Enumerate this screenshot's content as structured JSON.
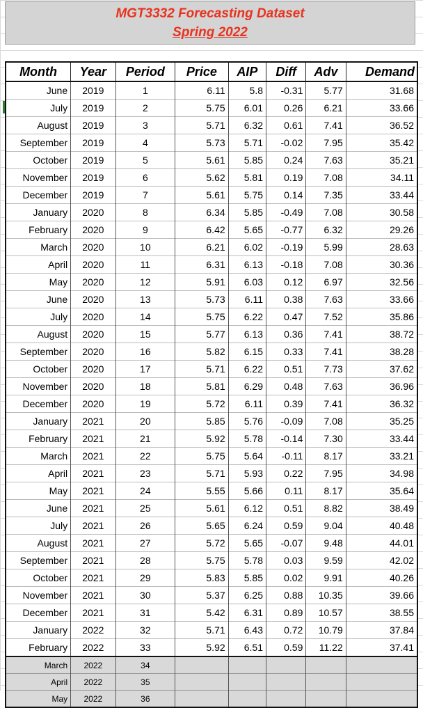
{
  "title": {
    "line1": "MGT3332 Forecasting Dataset",
    "line2": "Spring 2022"
  },
  "headers": [
    "Month",
    "Year",
    "Period",
    "Price",
    "AIP",
    "Diff",
    "Adv",
    "Demand"
  ],
  "rows": [
    [
      "June",
      "2019",
      "1",
      "6.11",
      "5.8",
      "-0.31",
      "5.77",
      "31.68"
    ],
    [
      "July",
      "2019",
      "2",
      "5.75",
      "6.01",
      "0.26",
      "6.21",
      "33.66"
    ],
    [
      "August",
      "2019",
      "3",
      "5.71",
      "6.32",
      "0.61",
      "7.41",
      "36.52"
    ],
    [
      "September",
      "2019",
      "4",
      "5.73",
      "5.71",
      "-0.02",
      "7.95",
      "35.42"
    ],
    [
      "October",
      "2019",
      "5",
      "5.61",
      "5.85",
      "0.24",
      "7.63",
      "35.21"
    ],
    [
      "November",
      "2019",
      "6",
      "5.62",
      "5.81",
      "0.19",
      "7.08",
      "34.11"
    ],
    [
      "December",
      "2019",
      "7",
      "5.61",
      "5.75",
      "0.14",
      "7.35",
      "33.44"
    ],
    [
      "January",
      "2020",
      "8",
      "6.34",
      "5.85",
      "-0.49",
      "7.08",
      "30.58"
    ],
    [
      "February",
      "2020",
      "9",
      "6.42",
      "5.65",
      "-0.77",
      "6.32",
      "29.26"
    ],
    [
      "March",
      "2020",
      "10",
      "6.21",
      "6.02",
      "-0.19",
      "5.99",
      "28.63"
    ],
    [
      "April",
      "2020",
      "11",
      "6.31",
      "6.13",
      "-0.18",
      "7.08",
      "30.36"
    ],
    [
      "May",
      "2020",
      "12",
      "5.91",
      "6.03",
      "0.12",
      "6.97",
      "32.56"
    ],
    [
      "June",
      "2020",
      "13",
      "5.73",
      "6.11",
      "0.38",
      "7.63",
      "33.66"
    ],
    [
      "July",
      "2020",
      "14",
      "5.75",
      "6.22",
      "0.47",
      "7.52",
      "35.86"
    ],
    [
      "August",
      "2020",
      "15",
      "5.77",
      "6.13",
      "0.36",
      "7.41",
      "38.72"
    ],
    [
      "September",
      "2020",
      "16",
      "5.82",
      "6.15",
      "0.33",
      "7.41",
      "38.28"
    ],
    [
      "October",
      "2020",
      "17",
      "5.71",
      "6.22",
      "0.51",
      "7.73",
      "37.62"
    ],
    [
      "November",
      "2020",
      "18",
      "5.81",
      "6.29",
      "0.48",
      "7.63",
      "36.96"
    ],
    [
      "December",
      "2020",
      "19",
      "5.72",
      "6.11",
      "0.39",
      "7.41",
      "36.32"
    ],
    [
      "January",
      "2021",
      "20",
      "5.85",
      "5.76",
      "-0.09",
      "7.08",
      "35.25"
    ],
    [
      "February",
      "2021",
      "21",
      "5.92",
      "5.78",
      "-0.14",
      "7.30",
      "33.44"
    ],
    [
      "March",
      "2021",
      "22",
      "5.75",
      "5.64",
      "-0.11",
      "8.17",
      "33.21"
    ],
    [
      "April",
      "2021",
      "23",
      "5.71",
      "5.93",
      "0.22",
      "7.95",
      "34.98"
    ],
    [
      "May",
      "2021",
      "24",
      "5.55",
      "5.66",
      "0.11",
      "8.17",
      "35.64"
    ],
    [
      "June",
      "2021",
      "25",
      "5.61",
      "6.12",
      "0.51",
      "8.82",
      "38.49"
    ],
    [
      "July",
      "2021",
      "26",
      "5.65",
      "6.24",
      "0.59",
      "9.04",
      "40.48"
    ],
    [
      "August",
      "2021",
      "27",
      "5.72",
      "5.65",
      "-0.07",
      "9.48",
      "44.01"
    ],
    [
      "September",
      "2021",
      "28",
      "5.75",
      "5.78",
      "0.03",
      "9.59",
      "42.02"
    ],
    [
      "October",
      "2021",
      "29",
      "5.83",
      "5.85",
      "0.02",
      "9.91",
      "40.26"
    ],
    [
      "November",
      "2021",
      "30",
      "5.37",
      "6.25",
      "0.88",
      "10.35",
      "39.66"
    ],
    [
      "December",
      "2021",
      "31",
      "5.42",
      "6.31",
      "0.89",
      "10.57",
      "38.55"
    ],
    [
      "January",
      "2022",
      "32",
      "5.71",
      "6.43",
      "0.72",
      "10.79",
      "37.84"
    ],
    [
      "February",
      "2022",
      "33",
      "5.92",
      "6.51",
      "0.59",
      "11.22",
      "37.41"
    ]
  ],
  "future_rows": [
    [
      "March",
      "2022",
      "34",
      "",
      "",
      "",
      "",
      ""
    ],
    [
      "April",
      "2022",
      "35",
      "",
      "",
      "",
      "",
      ""
    ],
    [
      "May",
      "2022",
      "36",
      "",
      "",
      "",
      "",
      ""
    ]
  ],
  "colors": {
    "title_text": "#e8331f",
    "title_bg": "#d4d4d4",
    "future_bg": "#d9d9d9"
  }
}
